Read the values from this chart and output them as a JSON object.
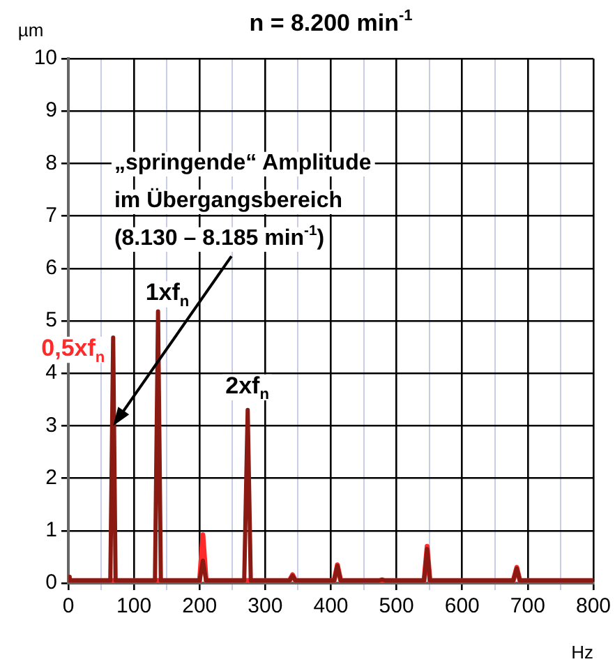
{
  "chart_data": {
    "type": "line",
    "title": "n = 8.200 min$^{-1}$",
    "xlabel": "Hz",
    "ylabel": "µm",
    "series": [
      {
        "color": "#8b1a12",
        "x": [
          0,
          2,
          6,
          64,
          68.3,
          72,
          132,
          136.7,
          141,
          200,
          205,
          210,
          268,
          273.3,
          278,
          337,
          341.7,
          346,
          405,
          410,
          415,
          473,
          478,
          483,
          542,
          546.7,
          551,
          610,
          615,
          620,
          678,
          683.3,
          688,
          746,
          751.7,
          756,
          800
        ],
        "values": [
          0.12,
          0.05,
          0.05,
          0.05,
          4.68,
          0.05,
          0.05,
          5.18,
          0.05,
          0.05,
          0.43,
          0.05,
          0.05,
          3.3,
          0.05,
          0.05,
          0.14,
          0.05,
          0.05,
          0.33,
          0.05,
          0.05,
          0.07,
          0.05,
          0.05,
          0.65,
          0.05,
          0.05,
          0.05,
          0.05,
          0.05,
          0.28,
          0.05,
          0.05,
          0.05,
          0.05,
          0.05
        ]
      },
      {
        "color": "#ff2a2a",
        "x": [
          0,
          200,
          205,
          210,
          337,
          341.7,
          346,
          405,
          410,
          415,
          542,
          546.7,
          551,
          678,
          683.3,
          688,
          800
        ],
        "values": [
          0.05,
          0.05,
          0.92,
          0.05,
          0.05,
          0.16,
          0.05,
          0.05,
          0.35,
          0.05,
          0.05,
          0.7,
          0.05,
          0.05,
          0.3,
          0.05,
          0.05
        ]
      }
    ],
    "xlim": [
      0,
      800
    ],
    "xticks": [
      0,
      {
        "value": 50,
        "label": null
      },
      100,
      {
        "value": 150,
        "label": null
      },
      200,
      {
        "value": 250,
        "label": null
      },
      300,
      {
        "value": 350,
        "label": null
      },
      400,
      {
        "value": 450,
        "label": null
      },
      500,
      {
        "value": 550,
        "label": null
      },
      600,
      {
        "value": 650,
        "label": null
      },
      700,
      {
        "value": 750,
        "label": null
      },
      800
    ],
    "ylim": [
      0,
      10
    ],
    "yticks": [
      0,
      1,
      2,
      3,
      4,
      5,
      6,
      7,
      8,
      9,
      10
    ],
    "grid": true,
    "legend": false,
    "marker": "none",
    "line_style": "solid",
    "annotations": [
      {
        "text": "0,5xf$_{n}$",
        "x": 68.3,
        "y": 4.68
      },
      {
        "text": "1xf$_{n}$",
        "x": 136.7,
        "y": 5.18
      },
      {
        "text": "2xf$_{n}$",
        "x": 273.3,
        "y": 3.3
      },
      {
        "text": "„springende“ Amplitude\nim Übergangsbereich\n(8.130 – 8.185 min$^{-1}$)",
        "x": 68.3,
        "y": 3.0
      }
    ]
  }
}
